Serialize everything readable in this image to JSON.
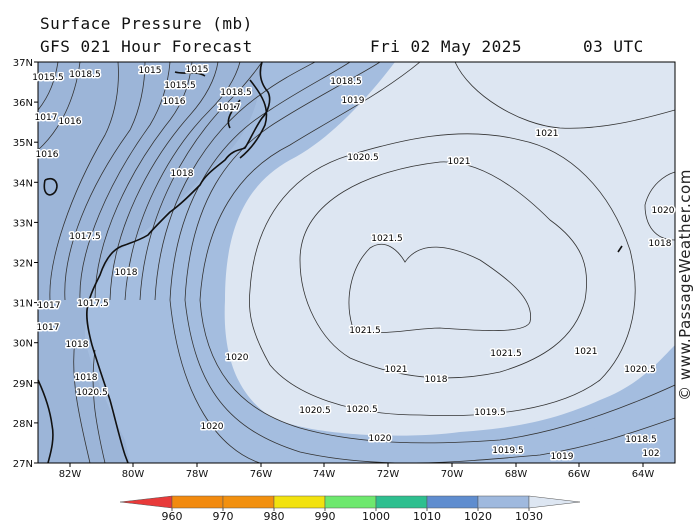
{
  "header": {
    "title": "Surface Pressure (mb)",
    "model": "GFS 021 Hour Forecast",
    "date": "Fri 02 May 2025",
    "time": "03 UTC"
  },
  "axes": {
    "lat_labels": [
      "37N",
      "36N",
      "35N",
      "34N",
      "33N",
      "32N",
      "31N",
      "30N",
      "29N",
      "28N",
      "27N"
    ],
    "lon_labels": [
      "82W",
      "80W",
      "78W",
      "76W",
      "74W",
      "72W",
      "70W",
      "68W",
      "66W",
      "64W"
    ]
  },
  "contour_labels": [
    "1015.5",
    "1018.5",
    "1015",
    "1015",
    "1015.5",
    "1016",
    "1018.5",
    "1017",
    "1018.5",
    "1019",
    "1021",
    "1016",
    "1017",
    "1016",
    "1018",
    "1020.5",
    "1021",
    "1021.5",
    "1017.5",
    "1018",
    "1021.5",
    "1017",
    "1017.5",
    "1017",
    "1018",
    "1021.5",
    "1020",
    "1021",
    "1021",
    "1020.5",
    "1018",
    "1018",
    "1020.5",
    "1020.5",
    "1020.5",
    "1019.5",
    "1020",
    "1020",
    "1019.5",
    "1019",
    "1018.5",
    "102",
    "1020",
    "1018"
  ],
  "colorbar": {
    "labels": [
      "960",
      "970",
      "980",
      "990",
      "1000",
      "1010",
      "1020",
      "1030"
    ],
    "colors": [
      "#e83a3a",
      "#f2900f",
      "#f2e20f",
      "#6ee86e",
      "#2ebf8f",
      "#5f8dcf",
      "#9fb9de",
      "#dde6f2"
    ]
  },
  "watermark": "© www.PassageWeather.com"
}
